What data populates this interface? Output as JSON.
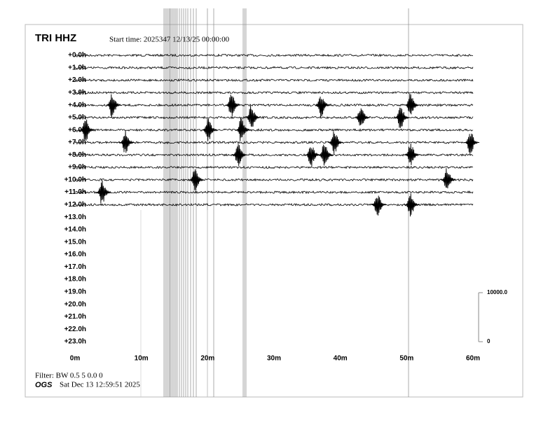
{
  "chart_data": {
    "type": "helicorder",
    "title": "TRI HHZ",
    "subtitle": "Start time: 2025347 12/13/25 00:00:00",
    "categories": [
      "+0.0h",
      "+1.0h",
      "+2.0h",
      "+3.0h",
      "+4.0h",
      "+5.0h",
      "+6.0h",
      "+7.0h",
      "+8.0h",
      "+9.0h",
      "+10.0h",
      "+11.0h",
      "+12.0h",
      "+13.0h",
      "+14.0h",
      "+15.0h",
      "+16.0h",
      "+17.0h",
      "+18.0h",
      "+19.0h",
      "+20.0h",
      "+21.0h",
      "+22.0h",
      "+23.0h"
    ],
    "xlim": [
      0,
      60
    ],
    "xticks": [
      {
        "value": 0,
        "label": "0m"
      },
      {
        "value": 10,
        "label": "10m"
      },
      {
        "value": 20,
        "label": "20m"
      },
      {
        "value": 30,
        "label": "30m"
      },
      {
        "value": 40,
        "label": "40m"
      },
      {
        "value": 50,
        "label": "50m"
      },
      {
        "value": 60,
        "label": "60m"
      }
    ],
    "traces": [
      [],
      [],
      [],
      [],
      [
        5.5,
        23.5,
        37,
        50.5
      ],
      [
        26.5,
        43,
        49
      ],
      [
        1.5,
        20,
        25
      ],
      [
        7.5,
        39,
        59.5
      ],
      [
        24.5,
        35.5,
        37.5,
        50.5
      ],
      [],
      [
        18,
        56
      ],
      [
        4
      ],
      [
        45.5,
        50.5
      ]
    ],
    "scale_ticks": [
      {
        "value": 10000,
        "label": "10000.0"
      },
      0
    ],
    "filter": "Filter: BW 0.5 5 0.0 0",
    "source": "OGS",
    "timestamp": "Sat Dec 13 12:59:51 2025"
  }
}
